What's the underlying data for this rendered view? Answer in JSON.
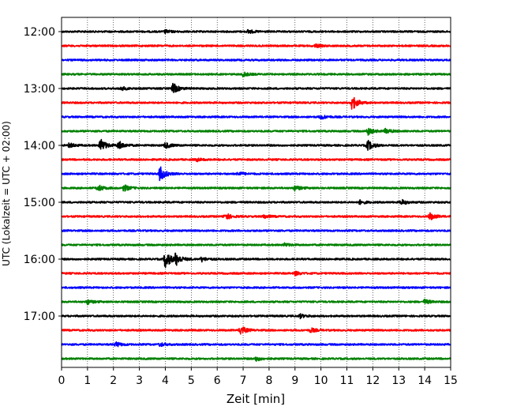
{
  "chart_data": {
    "type": "line",
    "title": "",
    "xlabel": "Zeit  [min]",
    "ylabel": "UTC (Lokalzeit = UTC + 02:00)",
    "xlim": [
      0,
      15
    ],
    "x_ticks": [
      "0",
      "1",
      "2",
      "3",
      "4",
      "5",
      "6",
      "7",
      "8",
      "9",
      "10",
      "11",
      "12",
      "13",
      "14",
      "15"
    ],
    "y_tick_labels": [
      "12:00",
      "13:00",
      "14:00",
      "15:00",
      "16:00",
      "17:00"
    ],
    "rows_per_hour": 4,
    "row_count": 24,
    "row_colors": [
      "#000000",
      "#ff0000",
      "#0000ff",
      "#008000"
    ],
    "grid": "vertical dotted at each minute",
    "events": [
      {
        "row": 0,
        "t": 7.2,
        "amp": 0.25
      },
      {
        "row": 0,
        "t": 4.0,
        "amp": 0.2
      },
      {
        "row": 1,
        "t": 9.8,
        "amp": 0.2
      },
      {
        "row": 3,
        "t": 7.0,
        "amp": 0.3
      },
      {
        "row": 4,
        "t": 4.3,
        "amp": 0.7
      },
      {
        "row": 4,
        "t": 2.3,
        "amp": 0.25
      },
      {
        "row": 5,
        "t": 11.2,
        "amp": 1.0
      },
      {
        "row": 6,
        "t": 10.0,
        "amp": 0.3
      },
      {
        "row": 7,
        "t": 11.8,
        "amp": 0.5
      },
      {
        "row": 7,
        "t": 12.5,
        "amp": 0.35
      },
      {
        "row": 8,
        "t": 1.5,
        "amp": 0.9
      },
      {
        "row": 8,
        "t": 2.2,
        "amp": 0.6
      },
      {
        "row": 8,
        "t": 4.0,
        "amp": 0.4
      },
      {
        "row": 8,
        "t": 11.8,
        "amp": 0.7
      },
      {
        "row": 8,
        "t": 0.3,
        "amp": 0.3
      },
      {
        "row": 9,
        "t": 5.2,
        "amp": 0.2
      },
      {
        "row": 10,
        "t": 3.8,
        "amp": 1.0
      },
      {
        "row": 10,
        "t": 6.8,
        "amp": 0.25
      },
      {
        "row": 11,
        "t": 1.4,
        "amp": 0.45
      },
      {
        "row": 11,
        "t": 2.4,
        "amp": 0.45
      },
      {
        "row": 11,
        "t": 9.0,
        "amp": 0.35
      },
      {
        "row": 12,
        "t": 13.1,
        "amp": 0.35
      },
      {
        "row": 12,
        "t": 11.5,
        "amp": 0.25
      },
      {
        "row": 13,
        "t": 6.3,
        "amp": 0.5
      },
      {
        "row": 13,
        "t": 14.2,
        "amp": 0.5
      },
      {
        "row": 13,
        "t": 7.8,
        "amp": 0.25
      },
      {
        "row": 15,
        "t": 8.6,
        "amp": 0.2
      },
      {
        "row": 16,
        "t": 4.0,
        "amp": 1.3
      },
      {
        "row": 16,
        "t": 4.4,
        "amp": 0.8
      },
      {
        "row": 16,
        "t": 5.4,
        "amp": 0.3
      },
      {
        "row": 17,
        "t": 9.0,
        "amp": 0.25
      },
      {
        "row": 19,
        "t": 1.0,
        "amp": 0.3
      },
      {
        "row": 19,
        "t": 14.0,
        "amp": 0.3
      },
      {
        "row": 20,
        "t": 9.2,
        "amp": 0.25
      },
      {
        "row": 21,
        "t": 6.9,
        "amp": 0.6
      },
      {
        "row": 21,
        "t": 9.6,
        "amp": 0.3
      },
      {
        "row": 22,
        "t": 2.1,
        "amp": 0.3
      },
      {
        "row": 22,
        "t": 3.8,
        "amp": 0.25
      },
      {
        "row": 23,
        "t": 7.5,
        "amp": 0.3
      }
    ]
  }
}
